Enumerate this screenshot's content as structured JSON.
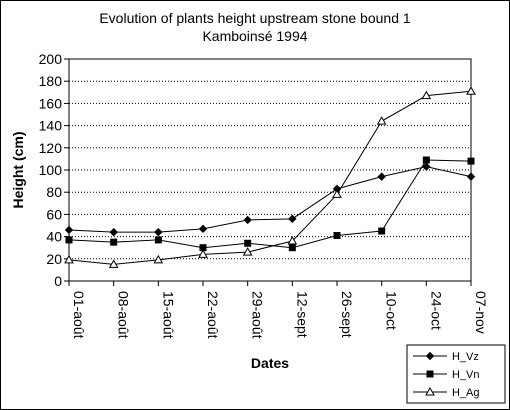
{
  "chart_data": {
    "type": "line",
    "title_lines": [
      "Evolution of plants height upstream stone bound 1",
      "Kamboinsé 1994"
    ],
    "xlabel": "Dates",
    "ylabel": "Height (cm)",
    "ylim": [
      0,
      200
    ],
    "ytick_step": 20,
    "grid": "horizontal dotted",
    "legend_position": "bottom-right",
    "categories": [
      "01-août",
      "08-août",
      "15-août",
      "22-août",
      "29-août",
      "12-sept",
      "26-sept",
      "10-oct",
      "24-oct",
      "07-nov"
    ],
    "series": [
      {
        "name": "H_Vz",
        "marker": "diamond",
        "values": [
          46,
          44,
          44,
          47,
          55,
          56,
          83,
          94,
          103,
          94
        ]
      },
      {
        "name": "H_Vn",
        "marker": "square",
        "values": [
          37,
          35,
          37,
          30,
          34,
          30,
          41,
          45,
          109,
          108
        ]
      },
      {
        "name": "H_Ag",
        "marker": "triangle",
        "values": [
          19,
          15,
          19,
          24,
          26,
          36,
          78,
          144,
          167,
          171
        ]
      }
    ]
  }
}
